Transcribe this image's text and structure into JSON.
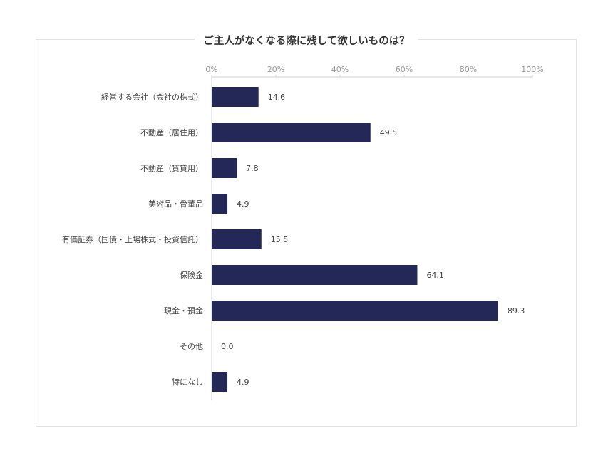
{
  "chart_data": {
    "type": "bar",
    "orientation": "horizontal",
    "title": "ご主人がなくなる際に残して欲しいものは？",
    "categories": [
      "経営する会社（会社の株式）",
      "不動産（居住用）",
      "不動産（賃貸用）",
      "美術品・骨董品",
      "有価証券（国債・上場株式・投資信託）",
      "保険金",
      "現金・預金",
      "その他",
      "特になし"
    ],
    "values": [
      14.6,
      49.5,
      7.8,
      4.9,
      15.5,
      64.1,
      89.3,
      0.0,
      4.9
    ],
    "value_labels": [
      "14.6",
      "49.5",
      "7.8",
      "4.9",
      "15.5",
      "64.1",
      "89.3",
      "0.0",
      "4.9"
    ],
    "xlim": [
      0,
      100
    ],
    "xticks": [
      0,
      20,
      40,
      60,
      80,
      100
    ],
    "xtick_labels": [
      "0%",
      "20%",
      "40%",
      "60%",
      "80%",
      "100%"
    ],
    "axis_position": "top",
    "grid": false,
    "legend": "none",
    "bar_color": "#232857"
  }
}
